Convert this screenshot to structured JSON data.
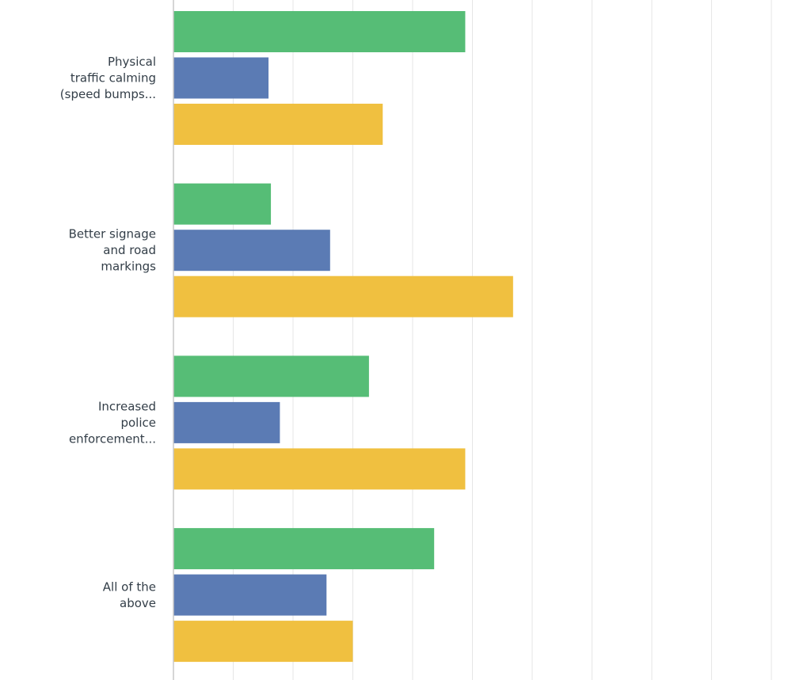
{
  "chart_data": {
    "type": "bar",
    "orientation": "horizontal",
    "categories": [
      [
        "Physical",
        "traffic calming",
        "(speed bumps..."
      ],
      [
        "Better signage",
        "and road",
        "markings"
      ],
      [
        "Increased",
        "police",
        "enforcement..."
      ],
      [
        "All of the",
        "above"
      ]
    ],
    "series": [
      {
        "color": "#56bd76",
        "values": [
          48.8,
          16.3,
          32.7,
          43.6
        ]
      },
      {
        "color": "#5b7bb4",
        "values": [
          15.9,
          26.2,
          17.8,
          25.6
        ]
      },
      {
        "color": "#f0c040",
        "values": [
          35.0,
          56.8,
          48.8,
          30.0
        ]
      }
    ],
    "xlim": [
      0,
      100
    ],
    "gridlines": 10,
    "grid": true,
    "legend": "none"
  }
}
